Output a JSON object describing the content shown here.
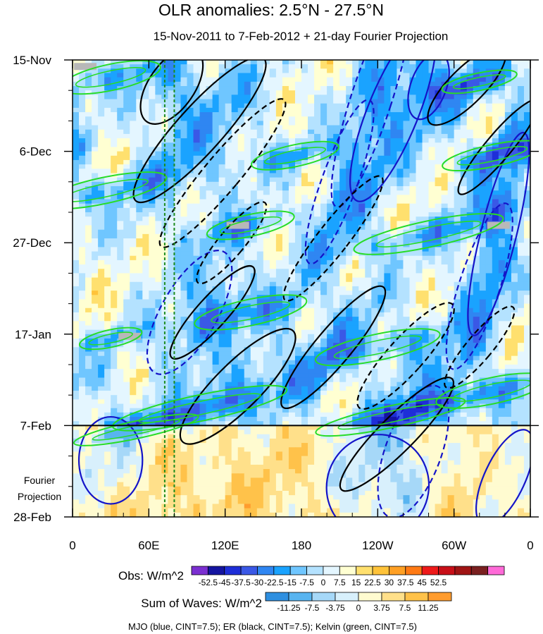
{
  "colors": {
    "obs": [
      "#7b2fd1",
      "#1414a0",
      "#1e2ed8",
      "#3a58e6",
      "#2f86f2",
      "#1aa3ff",
      "#6fc6ff",
      "#b4e2ff",
      "#e4f6ff",
      "#ffffd2",
      "#ffe06e",
      "#ffc33a",
      "#ffa024",
      "#ff7a14",
      "#ee1a1a",
      "#c80f18",
      "#a01414",
      "#7a2020",
      "#ff6ad8"
    ],
    "waves": [
      "#2e8fe0",
      "#58b4f0",
      "#a6d8f8",
      "#d8f0fc",
      "#fffbd0",
      "#ffe08a",
      "#ffc24a",
      "#ff9c2e",
      "#ff7a14"
    ],
    "mjo": "#1414c8",
    "er": "#000000",
    "kelvin": "#28dc28",
    "missing": "#b8b8b8",
    "reference_line": "#1e8c1e"
  },
  "chart_data": {
    "type": "heatmap",
    "title": "OLR anomalies: 2.5°N - 27.5°N",
    "subtitle": "15-Nov-2011 to 7-Feb-2012 + 21-day Fourier Projection",
    "x_axis": {
      "ticks": [
        {
          "label": "0",
          "lon": 0
        },
        {
          "label": "60E",
          "lon": 60
        },
        {
          "label": "120E",
          "lon": 120
        },
        {
          "label": "180",
          "lon": 180
        },
        {
          "label": "120W",
          "lon": 240
        },
        {
          "label": "60W",
          "lon": 300
        },
        {
          "label": "0",
          "lon": 360
        }
      ],
      "range": [
        0,
        360
      ]
    },
    "y_axis": {
      "ticks": [
        {
          "label": "15-Nov",
          "day": 0
        },
        {
          "label": "6-Dec",
          "day": 21
        },
        {
          "label": "27-Dec",
          "day": 42
        },
        {
          "label": "17-Jan",
          "day": 63
        },
        {
          "label": "7-Feb",
          "day": 84
        },
        {
          "label": "28-Feb",
          "day": 105
        }
      ],
      "range": [
        0,
        105
      ],
      "projection_start_day": 84,
      "projection_label": [
        "Fourier",
        "Projection"
      ]
    },
    "reference_longitudes": [
      72.5,
      80
    ],
    "obs_legend": {
      "label": "Obs: W/m^2",
      "levels": [
        "-52.5",
        "-45",
        "-37.5",
        "-30",
        "-22.5",
        "-15",
        "-7.5",
        "0",
        "7.5",
        "15",
        "22.5",
        "30",
        "37.5",
        "45",
        "52.5"
      ]
    },
    "waves_legend": {
      "label": "Sum of Waves: W/m^2",
      "levels": [
        "-11.25",
        "-7.5",
        "-3.75",
        "0",
        "3.75",
        "7.5",
        "11.25"
      ]
    },
    "footnote": "MJO (blue, CINT=7.5); ER (black, CINT=7.5); Kelvin (green, CINT=7.5)",
    "series": [
      {
        "name": "MJO",
        "color_key": "mjo",
        "contours": [
          {
            "lon": 252,
            "day": 12,
            "rlon": 20,
            "rday": 22,
            "tilt": 22,
            "sign": 1
          },
          {
            "lon": 210,
            "day": 28,
            "rlon": 14,
            "rday": 20,
            "tilt": 20,
            "sign": -1
          },
          {
            "lon": 235,
            "day": 9,
            "rlon": 16,
            "rday": 26,
            "tilt": 18,
            "sign": -1
          },
          {
            "lon": 335,
            "day": 40,
            "rlon": 14,
            "rday": 24,
            "tilt": 14,
            "sign": 1
          },
          {
            "lon": 320,
            "day": 52,
            "rlon": 16,
            "rday": 20,
            "tilt": 18,
            "sign": -1
          },
          {
            "lon": 92,
            "day": 58,
            "rlon": 22,
            "rday": 16,
            "tilt": 30,
            "sign": -1
          },
          {
            "lon": 240,
            "day": 98,
            "rlon": 40,
            "rday": 12,
            "tilt": 30,
            "sign": 1
          },
          {
            "lon": 268,
            "day": 90,
            "rlon": 22,
            "rday": 16,
            "tilt": 20,
            "sign": -1
          },
          {
            "lon": 340,
            "day": 96,
            "rlon": 16,
            "rday": 12,
            "tilt": 25,
            "sign": 1
          },
          {
            "lon": 30,
            "day": 92,
            "rlon": 25,
            "rday": 10,
            "tilt": 0,
            "sign": 1
          },
          {
            "lon": 280,
            "day": 6,
            "rlon": 14,
            "rday": 8,
            "tilt": 20,
            "sign": 1
          }
        ]
      },
      {
        "name": "ER",
        "color_key": "er",
        "contours": [
          {
            "lon": 100,
            "day": 16,
            "rlon": 18,
            "rday": 22,
            "tilt": 42,
            "sign": 1
          },
          {
            "lon": 78,
            "day": 6,
            "rlon": 18,
            "rday": 10,
            "tilt": 35,
            "sign": 1
          },
          {
            "lon": 118,
            "day": 26,
            "rlon": 14,
            "rday": 22,
            "tilt": 40,
            "sign": -1
          },
          {
            "lon": 110,
            "day": 58,
            "rlon": 12,
            "rday": 14,
            "tilt": 42,
            "sign": 1
          },
          {
            "lon": 205,
            "day": 41,
            "rlon": 12,
            "rday": 18,
            "tilt": 38,
            "sign": -1
          },
          {
            "lon": 125,
            "day": 42,
            "rlon": 10,
            "rday": 12,
            "tilt": 40,
            "sign": -1
          },
          {
            "lon": 205,
            "day": 66,
            "rlon": 14,
            "rday": 18,
            "tilt": 40,
            "sign": 1
          },
          {
            "lon": 130,
            "day": 75,
            "rlon": 18,
            "rday": 18,
            "tilt": 45,
            "sign": 1
          },
          {
            "lon": 255,
            "day": 86,
            "rlon": 14,
            "rday": 18,
            "tilt": 45,
            "sign": 1
          },
          {
            "lon": 262,
            "day": 68,
            "rlon": 14,
            "rday": 16,
            "tilt": 42,
            "sign": -1
          },
          {
            "lon": 310,
            "day": 6,
            "rlon": 14,
            "rday": 12,
            "tilt": 45,
            "sign": 1
          },
          {
            "lon": 335,
            "day": 20,
            "rlon": 10,
            "rday": 14,
            "tilt": 40,
            "sign": 1
          },
          {
            "lon": 320,
            "day": 66,
            "rlon": 10,
            "rday": 12,
            "tilt": 40,
            "sign": -1
          }
        ]
      },
      {
        "name": "Kelvin",
        "color_key": "kelvin",
        "contours": [
          {
            "lon": 30,
            "day": 4,
            "rlon": 40,
            "rday": 3,
            "tilt": -12,
            "sign": 1
          },
          {
            "lon": 320,
            "day": 5,
            "rlon": 30,
            "rday": 2,
            "tilt": -12,
            "sign": 1
          },
          {
            "lon": 330,
            "day": 22,
            "rlon": 40,
            "rday": 2.5,
            "tilt": -12,
            "sign": 1
          },
          {
            "lon": 25,
            "day": 30,
            "rlon": 50,
            "rday": 3,
            "tilt": -12,
            "sign": 1
          },
          {
            "lon": 140,
            "day": 38,
            "rlon": 35,
            "rday": 2.5,
            "tilt": -12,
            "sign": 1
          },
          {
            "lon": 280,
            "day": 40,
            "rlon": 60,
            "rday": 3,
            "tilt": -12,
            "sign": 1
          },
          {
            "lon": 140,
            "day": 58,
            "rlon": 45,
            "rday": 3,
            "tilt": -12,
            "sign": 1
          },
          {
            "lon": 240,
            "day": 66,
            "rlon": 50,
            "rday": 3,
            "tilt": -12,
            "sign": 1
          },
          {
            "lon": 100,
            "day": 80,
            "rlon": 70,
            "rday": 3,
            "tilt": -12,
            "sign": 1
          },
          {
            "lon": 330,
            "day": 76,
            "rlon": 45,
            "rday": 3,
            "tilt": -12,
            "sign": 1
          },
          {
            "lon": 250,
            "day": 82,
            "rlon": 60,
            "rday": 2.5,
            "tilt": -12,
            "sign": 1
          },
          {
            "lon": 50,
            "day": 85,
            "rlon": 50,
            "rday": 2,
            "tilt": -12,
            "sign": 1
          },
          {
            "lon": 175,
            "day": 22,
            "rlon": 35,
            "rday": 2.5,
            "tilt": -12,
            "sign": 1
          },
          {
            "lon": 30,
            "day": 64,
            "rlon": 25,
            "rday": 2,
            "tilt": -12,
            "sign": 1
          }
        ]
      }
    ],
    "missing_data_patches": [
      {
        "lon": 10,
        "day": 1.5
      },
      {
        "lon": 130,
        "day": 38
      },
      {
        "lon": 45,
        "day": 63.5
      },
      {
        "lon": 335,
        "day": 38
      }
    ]
  }
}
